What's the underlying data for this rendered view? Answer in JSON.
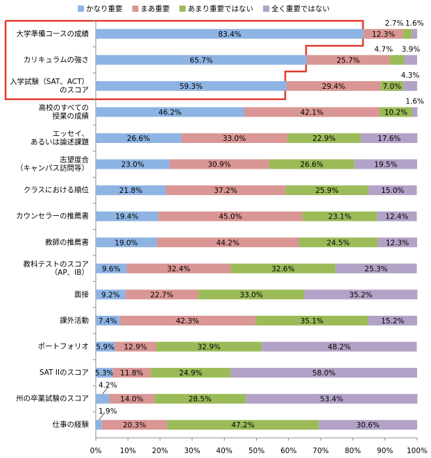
{
  "chart_data": {
    "type": "stacked-bar-horizontal",
    "categories": [
      "大学準備コースの成績",
      "カリキュラムの強さ",
      "入学試験（SAT、ACT）\nのスコア",
      "高校のすべての\n授業の成績",
      "エッセイ、\nあるいは論述課題",
      "志望度合\n（キャンパス訪問等）",
      "クラスにおける順位",
      "カウンセラーの推薦書",
      "教師の推薦書",
      "教科テストのスコア\n（AP、IB）",
      "面接",
      "課外活動",
      "ポートフォリオ",
      "SAT IIのスコア",
      "州の卒業試験のスコア",
      "仕事の経験"
    ],
    "series": [
      {
        "name": "かなり重要",
        "color": "#8eb4e3",
        "values": [
          83.4,
          65.7,
          59.3,
          46.2,
          26.6,
          23.0,
          21.8,
          19.4,
          19.0,
          9.6,
          9.2,
          7.4,
          5.9,
          5.3,
          4.2,
          1.9
        ],
        "value_labels": [
          "83.4%",
          "65.7%",
          "59.3%",
          "46.2%",
          "26.6%",
          "23.0%",
          "21.8%",
          "19.4%",
          "19.0%",
          "9.6%",
          "9.2%",
          "7.4%",
          "5.9%",
          "5.3%",
          "4.2%",
          "1.9%"
        ]
      },
      {
        "name": "まあ重要",
        "color": "#d99694",
        "values": [
          12.3,
          25.7,
          29.4,
          42.1,
          33.0,
          30.9,
          37.2,
          45.0,
          44.2,
          32.4,
          22.7,
          42.3,
          12.9,
          11.8,
          14.0,
          20.3
        ],
        "value_labels": [
          "12.3%",
          "25.7%",
          "29.4%",
          "42.1%",
          "33.0%",
          "30.9%",
          "37.2%",
          "45.0%",
          "44.2%",
          "32.4%",
          "22.7%",
          "42.3%",
          "12.9%",
          "11.8%",
          "14.0%",
          "20.3%"
        ]
      },
      {
        "name": "あまり重要ではない",
        "color": "#9bbb59",
        "values": [
          2.7,
          4.7,
          7.0,
          10.2,
          22.9,
          26.6,
          25.9,
          23.1,
          24.5,
          32.6,
          33.0,
          35.1,
          32.9,
          24.9,
          28.5,
          47.2
        ],
        "value_labels": [
          "2.7%",
          "4.7%",
          "7.0%",
          "10.2%",
          "22.9%",
          "26.6%",
          "25.9%",
          "23.1%",
          "24.5%",
          "32.6%",
          "33.0%",
          "35.1%",
          "32.9%",
          "24.9%",
          "28.5%",
          "47.2%"
        ]
      },
      {
        "name": "全く重要ではない",
        "color": "#b3a2c7",
        "values": [
          1.6,
          3.9,
          4.3,
          1.6,
          17.6,
          19.5,
          15.0,
          12.4,
          12.3,
          25.3,
          35.2,
          15.2,
          48.2,
          58.0,
          53.4,
          30.6
        ],
        "value_labels": [
          "1.6%",
          "3.9%",
          "4.3%",
          "1.6%",
          "17.6%",
          "19.5%",
          "15.0%",
          "12.4%",
          "12.3%",
          "25.3%",
          "35.2%",
          "15.2%",
          "48.2%",
          "58.0%",
          "53.4%",
          "30.6%"
        ]
      }
    ],
    "xlim": [
      0,
      100
    ],
    "xticks": [
      {
        "value": 0,
        "label": "0%"
      },
      {
        "value": 10,
        "label": "10%"
      },
      {
        "value": 20,
        "label": "20%"
      },
      {
        "value": 30,
        "label": "30%"
      },
      {
        "value": 40,
        "label": "40%"
      },
      {
        "value": 50,
        "label": "50%"
      },
      {
        "value": 60,
        "label": "60%"
      },
      {
        "value": 70,
        "label": "70%"
      },
      {
        "value": 80,
        "label": "80%"
      },
      {
        "value": 90,
        "label": "90%"
      },
      {
        "value": 100,
        "label": "100%"
      }
    ],
    "grid": false,
    "legend": "top"
  }
}
